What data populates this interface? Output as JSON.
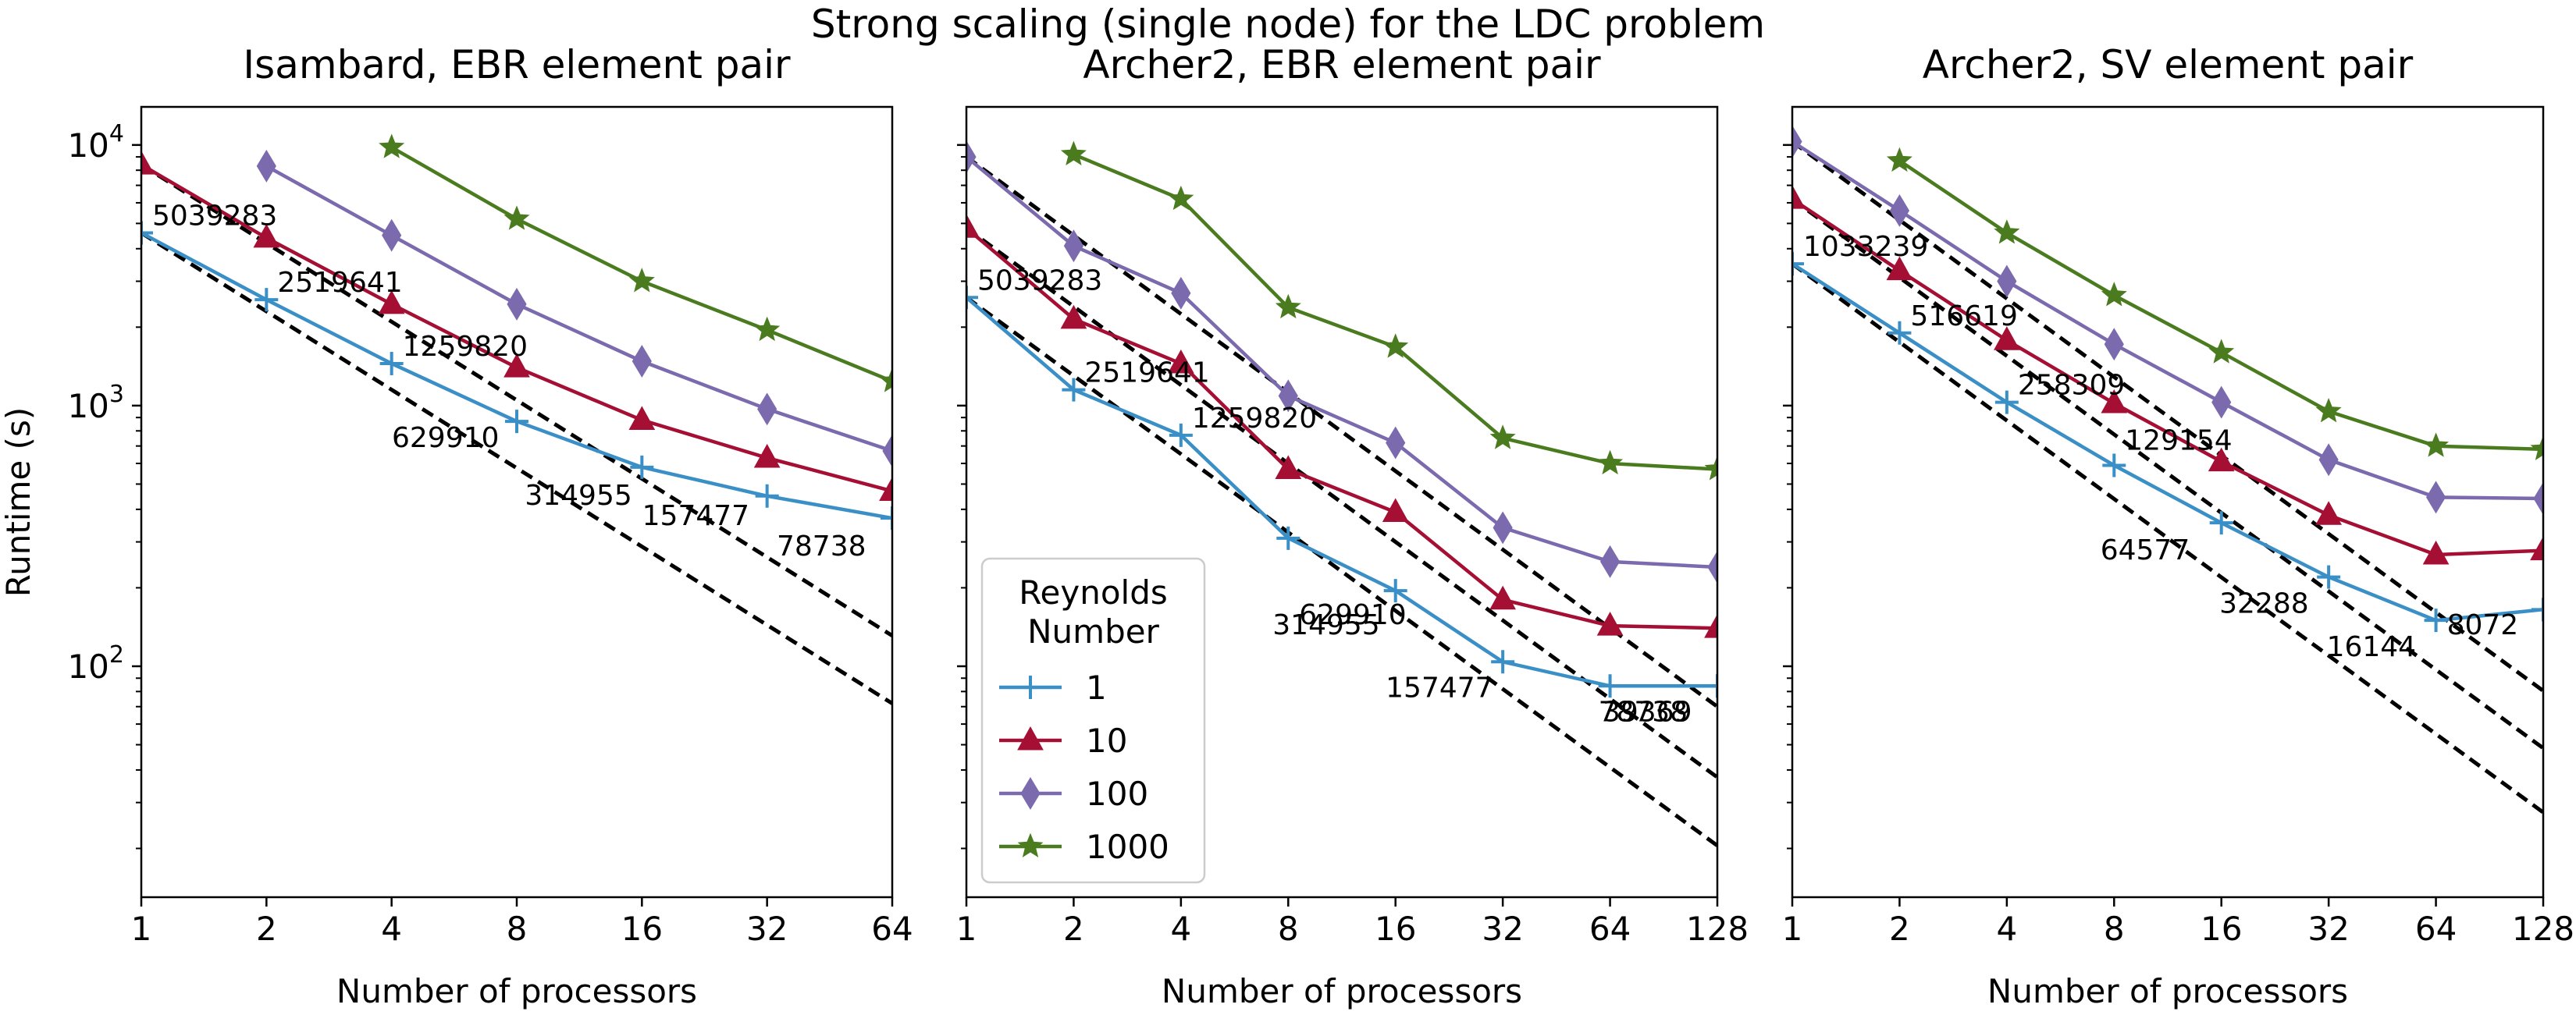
{
  "figure": {
    "suptitle": "Strong scaling (single node) for the LDC problem",
    "legend": {
      "title_line1": "Reynolds",
      "title_line2": "Number",
      "location": "lower-left of middle panel",
      "entries": [
        {
          "label": "1",
          "color": "#3a8fc7",
          "marker": "plus"
        },
        {
          "label": "10",
          "color": "#a50f34",
          "marker": "triangle"
        },
        {
          "label": "100",
          "color": "#7b6aae",
          "marker": "diamond"
        },
        {
          "label": "1000",
          "color": "#4a7c1f",
          "marker": "star"
        }
      ]
    }
  },
  "chart_data": [
    {
      "type": "line",
      "title": "Isambard, EBR element pair",
      "xlabel": "Number of processors",
      "ylabel": "Runtime (s)",
      "xscale": "log2",
      "yscale": "log10",
      "x_ticks": [
        1,
        2,
        4,
        8,
        16,
        32,
        64
      ],
      "xlim": [
        1,
        64
      ],
      "ylim": [
        13,
        14000
      ],
      "y_tick_labels": [
        "10^2",
        "10^3",
        "10^4"
      ],
      "series": [
        {
          "name": "1",
          "color": "#3a8fc7",
          "marker": "plus",
          "points": [
            [
              1,
              4600
            ],
            [
              2,
              2550
            ],
            [
              4,
              1450
            ],
            [
              8,
              870
            ],
            [
              16,
              580
            ],
            [
              32,
              450
            ],
            [
              64,
              370
            ]
          ]
        },
        {
          "name": "10",
          "color": "#a50f34",
          "marker": "triangle",
          "points": [
            [
              1,
              8400
            ],
            [
              2,
              4400
            ],
            [
              4,
              2450
            ],
            [
              8,
              1400
            ],
            [
              16,
              880
            ],
            [
              32,
              630
            ],
            [
              64,
              470
            ]
          ]
        },
        {
          "name": "100",
          "color": "#7b6aae",
          "marker": "diamond",
          "points": [
            [
              2,
              8300
            ],
            [
              4,
              4500
            ],
            [
              8,
              2450
            ],
            [
              16,
              1480
            ],
            [
              32,
              970
            ],
            [
              64,
              670
            ]
          ]
        },
        {
          "name": "1000",
          "color": "#4a7c1f",
          "marker": "star",
          "points": [
            [
              4,
              9800
            ],
            [
              8,
              5200
            ],
            [
              16,
              3000
            ],
            [
              32,
              1950
            ],
            [
              64,
              1240
            ]
          ]
        }
      ],
      "ideal_lines": [
        {
          "from": [
            1,
            4600
          ],
          "to": [
            64,
            72
          ]
        },
        {
          "from": [
            1,
            8400
          ],
          "to": [
            64,
            131
          ]
        }
      ],
      "annotations": [
        {
          "text": "5039283",
          "x": 1,
          "y": 4600
        },
        {
          "text": "2519641",
          "x": 2,
          "y": 2550
        },
        {
          "text": "1259820",
          "x": 4,
          "y": 1450
        },
        {
          "text": "629910",
          "x": 8,
          "y": 870
        },
        {
          "text": "314955",
          "x": 16,
          "y": 580
        },
        {
          "text": "157477",
          "x": 32,
          "y": 450
        },
        {
          "text": "78738",
          "x": 64,
          "y": 370
        }
      ]
    },
    {
      "type": "line",
      "title": "Archer2, EBR element pair",
      "xlabel": "Number of processors",
      "ylabel": "",
      "xscale": "log2",
      "yscale": "log10",
      "x_ticks": [
        1,
        2,
        4,
        8,
        16,
        32,
        64,
        128
      ],
      "xlim": [
        1,
        128
      ],
      "ylim": [
        13,
        14000
      ],
      "series": [
        {
          "name": "1",
          "color": "#3a8fc7",
          "marker": "plus",
          "points": [
            [
              1,
              2600
            ],
            [
              2,
              1150
            ],
            [
              4,
              770
            ],
            [
              8,
              310
            ],
            [
              16,
              195
            ],
            [
              32,
              104
            ],
            [
              64,
              84
            ],
            [
              128,
              84
            ]
          ]
        },
        {
          "name": "10",
          "color": "#a50f34",
          "marker": "triangle",
          "points": [
            [
              1,
              4800
            ],
            [
              2,
              2150
            ],
            [
              4,
              1450
            ],
            [
              8,
              570
            ],
            [
              16,
              390
            ],
            [
              32,
              180
            ],
            [
              64,
              143
            ],
            [
              128,
              140
            ]
          ]
        },
        {
          "name": "100",
          "color": "#7b6aae",
          "marker": "diamond",
          "points": [
            [
              1,
              9000
            ],
            [
              2,
              4100
            ],
            [
              4,
              2700
            ],
            [
              8,
              1090
            ],
            [
              16,
              720
            ],
            [
              32,
              340
            ],
            [
              64,
              252
            ],
            [
              128,
              240
            ]
          ]
        },
        {
          "name": "1000",
          "color": "#4a7c1f",
          "marker": "star",
          "points": [
            [
              2,
              9200
            ],
            [
              4,
              6200
            ],
            [
              8,
              2380
            ],
            [
              16,
              1680
            ],
            [
              32,
              750
            ],
            [
              64,
              600
            ],
            [
              128,
              570
            ]
          ]
        }
      ],
      "ideal_lines": [
        {
          "from": [
            1,
            2600
          ],
          "to": [
            128,
            20.5
          ]
        },
        {
          "from": [
            1,
            4800
          ],
          "to": [
            128,
            37.5
          ]
        },
        {
          "from": [
            1,
            9000
          ],
          "to": [
            128,
            70
          ]
        }
      ],
      "annotations": [
        {
          "text": "5039283",
          "x": 1,
          "y": 2600
        },
        {
          "text": "2519641",
          "x": 2,
          "y": 1150
        },
        {
          "text": "1259820",
          "x": 4,
          "y": 770
        },
        {
          "text": "629910",
          "x": 8,
          "y": 310
        },
        {
          "text": "314955",
          "x": 8,
          "y": 310
        },
        {
          "text": "157477",
          "x": 32,
          "y": 104
        },
        {
          "text": "78738",
          "x": 64,
          "y": 84
        },
        {
          "text": "39369",
          "x": 128,
          "y": 84
        }
      ]
    },
    {
      "type": "line",
      "title": "Archer2, SV element pair",
      "xlabel": "Number of processors",
      "ylabel": "",
      "xscale": "log2",
      "yscale": "log10",
      "x_ticks": [
        1,
        2,
        4,
        8,
        16,
        32,
        64,
        128
      ],
      "xlim": [
        1,
        128
      ],
      "ylim": [
        13,
        14000
      ],
      "series": [
        {
          "name": "1",
          "color": "#3a8fc7",
          "marker": "plus",
          "points": [
            [
              1,
              3500
            ],
            [
              2,
              1900
            ],
            [
              4,
              1030
            ],
            [
              8,
              590
            ],
            [
              16,
              355
            ],
            [
              32,
              220
            ],
            [
              64,
              150
            ],
            [
              128,
              165
            ]
          ]
        },
        {
          "name": "10",
          "color": "#a50f34",
          "marker": "triangle",
          "points": [
            [
              1,
              6200
            ],
            [
              2,
              3300
            ],
            [
              4,
              1780
            ],
            [
              8,
              1020
            ],
            [
              16,
              610
            ],
            [
              32,
              380
            ],
            [
              64,
              268
            ],
            [
              128,
              278
            ]
          ]
        },
        {
          "name": "100",
          "color": "#7b6aae",
          "marker": "diamond",
          "points": [
            [
              1,
              10300
            ],
            [
              2,
              5600
            ],
            [
              4,
              3000
            ],
            [
              8,
              1720
            ],
            [
              16,
              1030
            ],
            [
              32,
              620
            ],
            [
              64,
              445
            ],
            [
              128,
              440
            ]
          ]
        },
        {
          "name": "1000",
          "color": "#4a7c1f",
          "marker": "star",
          "points": [
            [
              2,
              8700
            ],
            [
              4,
              4600
            ],
            [
              8,
              2650
            ],
            [
              16,
              1600
            ],
            [
              32,
              950
            ],
            [
              64,
              700
            ],
            [
              128,
              680
            ]
          ]
        }
      ],
      "ideal_lines": [
        {
          "from": [
            1,
            3500
          ],
          "to": [
            128,
            27.5
          ]
        },
        {
          "from": [
            1,
            6200
          ],
          "to": [
            128,
            48.5
          ]
        },
        {
          "from": [
            1,
            10300
          ],
          "to": [
            128,
            80.5
          ]
        }
      ],
      "annotations": [
        {
          "text": "1033239",
          "x": 1,
          "y": 3500
        },
        {
          "text": "516619",
          "x": 2,
          "y": 1900
        },
        {
          "text": "258309",
          "x": 4,
          "y": 1030
        },
        {
          "text": "129154",
          "x": 8,
          "y": 590
        },
        {
          "text": "64577",
          "x": 16,
          "y": 355
        },
        {
          "text": "32288",
          "x": 32,
          "y": 220
        },
        {
          "text": "16144",
          "x": 64,
          "y": 150
        },
        {
          "text": "8072",
          "x": 64,
          "y": 150
        }
      ]
    }
  ]
}
